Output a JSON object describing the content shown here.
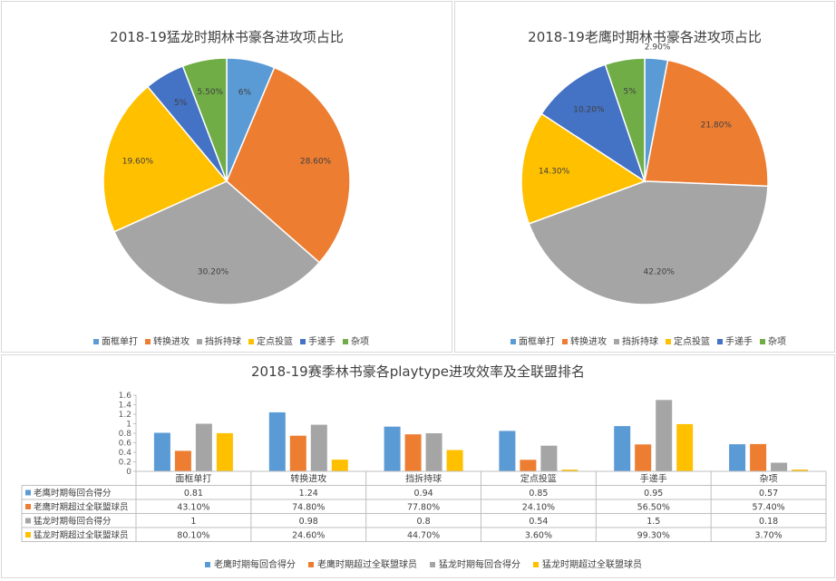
{
  "charts": [
    {
      "title": "2018-19猛龙时期林书豪各进攻项占比",
      "legend": [
        "面框单打",
        "转换进攻",
        "挡拆持球",
        "定点投篮",
        "手递手",
        "杂项"
      ],
      "colors": [
        "#5b9bd5",
        "#ed7d31",
        "#a5a5a5",
        "#ffc000",
        "#4472c4",
        "#70ad47"
      ]
    },
    {
      "title": "2018-19老鹰时期林书豪各进攻项占比",
      "legend": [
        "面框单打",
        "转换进攻",
        "挡拆持球",
        "定点投篮",
        "手递手",
        "杂项"
      ],
      "colors": [
        "#5b9bd5",
        "#ed7d31",
        "#a5a5a5",
        "#ffc000",
        "#4472c4",
        "#70ad47"
      ]
    },
    {
      "title": "2018-19赛季林书豪各playtype进攻效率及全联盟排名",
      "legend": [
        "老鹰时期每回合得分",
        "老鹰时期超过全联盟球员",
        "猛龙时期每回合得分",
        "猛龙时期超过全联盟球员"
      ],
      "colors": [
        "#5b9bd5",
        "#ed7d31",
        "#a5a5a5",
        "#ffc000"
      ]
    }
  ],
  "chart_data": [
    {
      "type": "pie",
      "title": "2018-19猛龙时期林书豪各进攻项占比",
      "labels": [
        "面框单打",
        "转换进攻",
        "挡拆持球",
        "定点投篮",
        "手递手",
        "杂项"
      ],
      "values": [
        6,
        28.6,
        30.2,
        19.6,
        5,
        5.5
      ],
      "data_labels": [
        "6%",
        "28.60%",
        "30.20%",
        "19.60%",
        "5%",
        "5.50%"
      ],
      "legend_position": "bottom"
    },
    {
      "type": "pie",
      "title": "2018-19老鹰时期林书豪各进攻项占比",
      "labels": [
        "面框单打",
        "转换进攻",
        "挡拆持球",
        "定点投篮",
        "手递手",
        "杂项"
      ],
      "values": [
        2.9,
        21.8,
        42.2,
        14.3,
        10.2,
        5
      ],
      "data_labels": [
        "2.90%",
        "21.80%",
        "42.20%",
        "14.30%",
        "10.20%",
        "5%"
      ],
      "legend_position": "bottom"
    },
    {
      "type": "bar",
      "title": "2018-19赛季林书豪各playtype进攻效率及全联盟排名",
      "categories": [
        "面框单打",
        "转换进攻",
        "挡拆持球",
        "定点投篮",
        "手递手",
        "杂项"
      ],
      "series": [
        {
          "name": "老鹰时期每回合得分",
          "values": [
            0.81,
            1.24,
            0.94,
            0.85,
            0.95,
            0.57
          ],
          "table": [
            "0.81",
            "1.24",
            "0.94",
            "0.85",
            "0.95",
            "0.57"
          ]
        },
        {
          "name": "老鹰时期超过全联盟球员",
          "values": [
            0.431,
            0.748,
            0.778,
            0.241,
            0.565,
            0.574
          ],
          "table": [
            "43.10%",
            "74.80%",
            "77.80%",
            "24.10%",
            "56.50%",
            "57.40%"
          ]
        },
        {
          "name": "猛龙时期每回合得分",
          "values": [
            1,
            0.98,
            0.8,
            0.54,
            1.5,
            0.18
          ],
          "table": [
            "1",
            "0.98",
            "0.8",
            "0.54",
            "1.5",
            "0.18"
          ]
        },
        {
          "name": "猛龙时期超过全联盟球员",
          "values": [
            0.801,
            0.246,
            0.447,
            0.036,
            0.993,
            0.037
          ],
          "table": [
            "80.10%",
            "24.60%",
            "44.70%",
            "3.60%",
            "99.30%",
            "3.70%"
          ]
        }
      ],
      "ylim": [
        0,
        1.6
      ],
      "yticks": [
        "0",
        "0.2",
        "0.4",
        "0.6",
        "0.8",
        "1",
        "1.2",
        "1.4",
        "1.6"
      ],
      "grid": false,
      "legend_position": "bottom",
      "data_table": true
    }
  ]
}
